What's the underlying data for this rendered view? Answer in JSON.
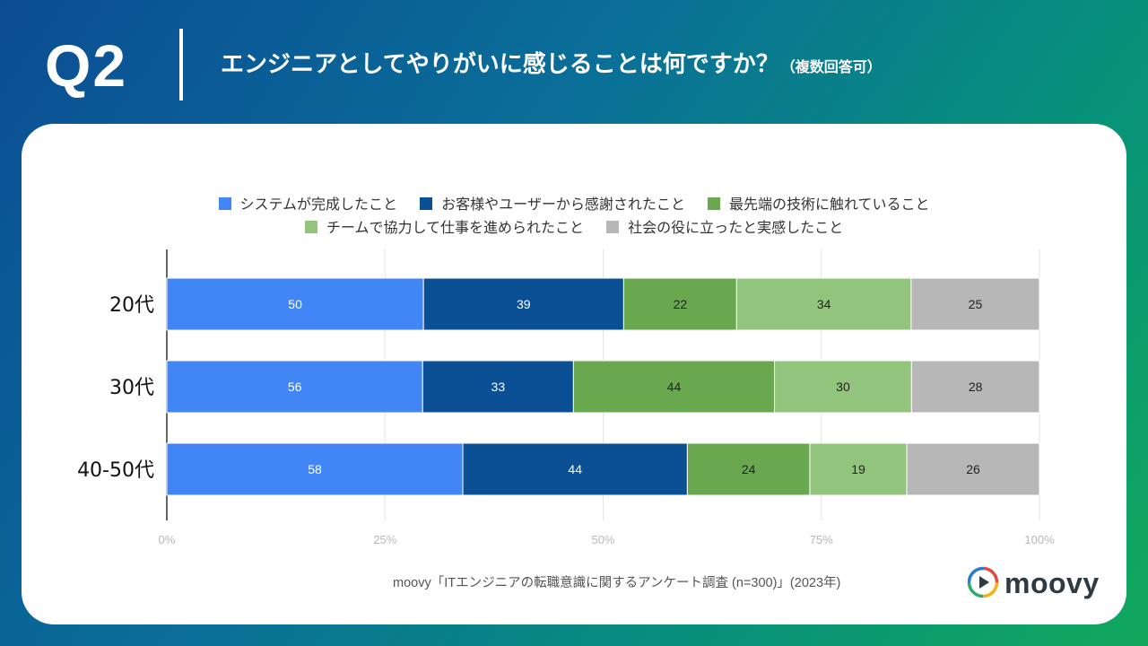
{
  "header": {
    "question": "Q2",
    "title": "エンジニアとしてやりがいに感じることは何ですか？",
    "subtitle": "（複数回答可）"
  },
  "chart_data": {
    "type": "bar",
    "orientation": "horizontal",
    "stacked": "percent",
    "categories": [
      "20代",
      "30代",
      "40-50代"
    ],
    "series": [
      {
        "name": "システムが完成したこと",
        "color": "#4285f4",
        "values": [
          50,
          56,
          58
        ]
      },
      {
        "name": "お客様やユーザーから感謝されたこと",
        "color": "#0b4f94",
        "values": [
          39,
          33,
          44
        ]
      },
      {
        "name": "最先端の技術に触れていること",
        "color": "#6aa84f",
        "values": [
          22,
          44,
          24
        ]
      },
      {
        "name": "チームで協力して仕事を進められたこと",
        "color": "#93c47d",
        "values": [
          34,
          30,
          19
        ]
      },
      {
        "name": "社会の役に立ったと実感したこと",
        "color": "#b7b7b7",
        "values": [
          25,
          28,
          26
        ]
      }
    ],
    "xticks": [
      "0%",
      "25%",
      "50%",
      "75%",
      "100%"
    ],
    "xlim": [
      0,
      100
    ],
    "grid": true,
    "legend": "top-center"
  },
  "footer": {
    "source": "moovy「ITエンジニアの転職意識に関するアンケート調査 (n=300)」(2023年)",
    "logo_text": "moovy"
  }
}
